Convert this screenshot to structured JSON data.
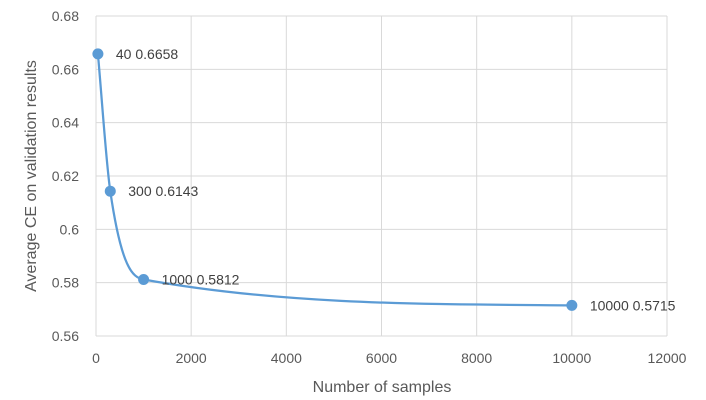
{
  "chart_data": {
    "type": "line",
    "title": "",
    "xlabel": "Number of samples",
    "ylabel": "Average CE on validation results",
    "xlim": [
      0,
      12000
    ],
    "ylim": [
      0.56,
      0.68
    ],
    "x_ticks": [
      0,
      2000,
      4000,
      6000,
      8000,
      10000,
      12000
    ],
    "y_ticks": [
      0.56,
      0.58,
      0.6,
      0.62,
      0.64,
      0.66,
      0.68
    ],
    "x_tick_labels": [
      "0",
      "2000",
      "4000",
      "6000",
      "8000",
      "10000",
      "12000"
    ],
    "y_tick_labels": [
      "0.56",
      "0.58",
      "0.6",
      "0.62",
      "0.64",
      "0.66",
      "0.68"
    ],
    "grid": true,
    "smooth": true,
    "series": [
      {
        "x": [
          40,
          300,
          1000,
          10000
        ],
        "y": [
          0.6658,
          0.6143,
          0.5812,
          0.5715
        ],
        "labels": [
          "40 0.6658",
          "300 0.6143",
          "1000 0.5812",
          "10000 0.5715"
        ],
        "color": "#5b9bd5"
      }
    ]
  }
}
